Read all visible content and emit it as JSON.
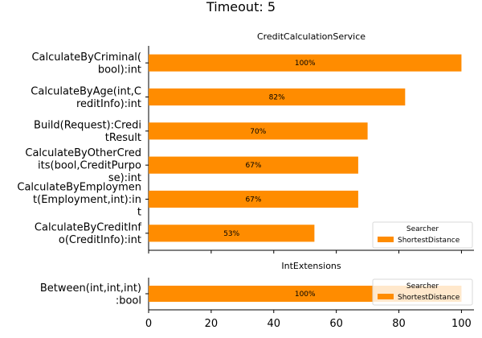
{
  "chart_data": {
    "suptitle": "Timeout: 5",
    "xlim": [
      0,
      104
    ],
    "xticks": [
      0,
      20,
      40,
      60,
      80,
      100
    ],
    "bar_color": "#ff8c00",
    "panels": [
      {
        "type": "bar",
        "orientation": "horizontal",
        "title": "CreditCalculationService",
        "categories": [
          [
            "CalculateByCriminal(",
            "bool):int"
          ],
          [
            "CalculateByAge(int,C",
            "reditInfo):int"
          ],
          [
            "Build(Request):Credi",
            "tResult"
          ],
          [
            "CalculateByOtherCred",
            "its(bool,CreditPurpo",
            "se):int"
          ],
          [
            "CalculateByEmploymen",
            "t(Employment,int):in",
            "t"
          ],
          [
            "CalculateByCreditInf",
            "o(CreditInfo):int"
          ]
        ],
        "series": [
          {
            "name": "ShortestDistance",
            "values": [
              100,
              82,
              70,
              67,
              67,
              53
            ],
            "labels": [
              "100%",
              "82%",
              "70%",
              "67%",
              "67%",
              "53%"
            ]
          }
        ],
        "legend": {
          "title": "Searcher",
          "placement": "lower-right"
        }
      },
      {
        "type": "bar",
        "orientation": "horizontal",
        "title": "IntExtensions",
        "categories": [
          [
            "Between(int,int,int)",
            ":bool"
          ]
        ],
        "series": [
          {
            "name": "ShortestDistance",
            "values": [
              100
            ],
            "labels": [
              "100%"
            ]
          }
        ],
        "legend": {
          "title": "Searcher",
          "placement": "upper-right"
        }
      }
    ]
  }
}
